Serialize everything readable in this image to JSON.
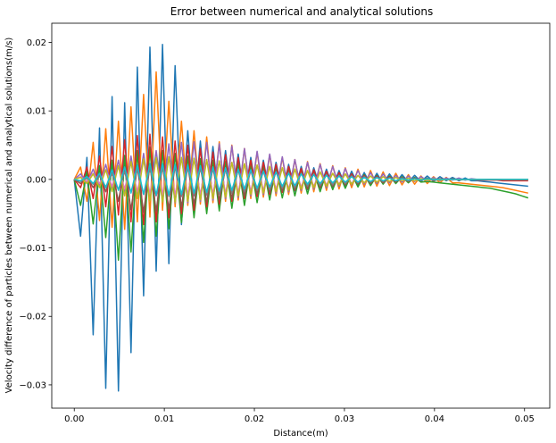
{
  "chart_data": {
    "type": "line",
    "title": "Error between numerical and analytical solutions",
    "xlabel": "Distance(m)",
    "ylabel": "Velocity difference of particles between numerical and analytical solutions(m/s)",
    "xlim": [
      -0.0025,
      0.0528
    ],
    "ylim": [
      -0.0334,
      0.0228
    ],
    "x_ticks": [
      0.0,
      0.01,
      0.02,
      0.03,
      0.04,
      0.05
    ],
    "x_tick_labels": [
      "0.00",
      "0.01",
      "0.02",
      "0.03",
      "0.04",
      "0.05"
    ],
    "y_ticks": [
      -0.03,
      -0.02,
      -0.01,
      0.0,
      0.01,
      0.02
    ],
    "y_tick_labels": [
      "−0.03",
      "−0.02",
      "−0.01",
      "0.00",
      "0.01",
      "0.02"
    ],
    "grid": false,
    "legend": "none",
    "x": [
      0.0,
      0.0007,
      0.0014,
      0.0021,
      0.0028,
      0.0035,
      0.0042,
      0.0049,
      0.0056,
      0.0063,
      0.007,
      0.0077,
      0.0084,
      0.0091,
      0.0098,
      0.0105,
      0.0112,
      0.0119,
      0.0126,
      0.0133,
      0.014,
      0.0147,
      0.0154,
      0.0161,
      0.0168,
      0.0175,
      0.0182,
      0.0189,
      0.0196,
      0.0203,
      0.021,
      0.0217,
      0.0224,
      0.0231,
      0.0238,
      0.0245,
      0.0252,
      0.0259,
      0.0266,
      0.0273,
      0.028,
      0.0287,
      0.0294,
      0.0301,
      0.0308,
      0.0315,
      0.0322,
      0.0329,
      0.0336,
      0.0343,
      0.035,
      0.0357,
      0.0364,
      0.0371,
      0.0378,
      0.0385,
      0.0392,
      0.0399,
      0.0406,
      0.0413,
      0.042,
      0.0427,
      0.0434,
      0.0441,
      0.0448,
      0.0455,
      0.0462,
      0.0469,
      0.0476,
      0.0483,
      0.049,
      0.0497,
      0.0504
    ],
    "series": [
      {
        "color": "#1f77b4",
        "values": [
          0.0,
          -0.0083,
          0.0032,
          -0.0227,
          0.0075,
          -0.0305,
          0.0121,
          -0.0309,
          0.0112,
          -0.0253,
          0.0164,
          -0.017,
          0.0193,
          -0.0134,
          0.0197,
          -0.0123,
          0.0166,
          -0.0066,
          0.0071,
          -0.0048,
          0.0056,
          -0.0041,
          0.0048,
          -0.0036,
          0.0042,
          -0.0032,
          0.0037,
          -0.0028,
          0.0032,
          -0.0025,
          0.0028,
          -0.0022,
          0.0025,
          -0.0019,
          0.0022,
          -0.0017,
          0.0019,
          -0.0015,
          0.0017,
          -0.0013,
          0.0015,
          -0.0011,
          0.0013,
          -0.001,
          0.0012,
          -0.0008,
          0.001,
          -0.0007,
          0.0009,
          -0.0006,
          0.0008,
          -0.0005,
          0.0007,
          -0.0004,
          0.0006,
          -0.0003,
          0.0005,
          -0.0003,
          0.0004,
          -0.0002,
          0.0003,
          -0.0002,
          0.0002,
          -0.0002,
          -0.0002,
          -0.0003,
          -0.0004,
          -0.0005,
          -0.0006,
          -0.0007,
          -0.0008,
          -0.0009,
          -0.001
        ]
      },
      {
        "color": "#ff7f0e",
        "values": [
          0.0,
          0.0018,
          -0.0032,
          0.0054,
          -0.006,
          0.0074,
          -0.007,
          0.0085,
          -0.0073,
          0.0106,
          -0.0062,
          0.0124,
          -0.0055,
          0.0157,
          -0.0045,
          0.0114,
          -0.004,
          0.0085,
          -0.0038,
          0.0071,
          -0.0036,
          0.0062,
          -0.0034,
          0.0055,
          -0.0032,
          0.005,
          -0.003,
          0.0045,
          -0.0028,
          0.004,
          -0.0026,
          0.0036,
          -0.0024,
          0.0032,
          -0.0022,
          0.0029,
          -0.002,
          0.0026,
          -0.0018,
          0.0023,
          -0.0016,
          0.002,
          -0.0014,
          0.0017,
          -0.0012,
          0.0015,
          -0.0011,
          0.0013,
          -0.001,
          0.0011,
          -0.0009,
          0.0009,
          -0.0008,
          0.0007,
          -0.0007,
          0.0005,
          -0.0006,
          0.0004,
          -0.0005,
          0.0003,
          -0.0005,
          -0.0005,
          -0.0006,
          -0.0007,
          -0.0008,
          -0.0009,
          -0.001,
          -0.0011,
          -0.0012,
          -0.0014,
          -0.0016,
          -0.0018,
          -0.002
        ]
      },
      {
        "color": "#2ca02c",
        "values": [
          0.0,
          -0.0038,
          0.0012,
          -0.0065,
          0.002,
          -0.0085,
          0.0028,
          -0.0118,
          0.0035,
          -0.0106,
          0.0042,
          -0.0092,
          0.0047,
          -0.0083,
          0.0042,
          -0.0072,
          0.0038,
          -0.0063,
          0.0034,
          -0.0056,
          0.003,
          -0.005,
          0.0028,
          -0.0046,
          0.0026,
          -0.0042,
          0.0024,
          -0.0038,
          0.0022,
          -0.0034,
          0.002,
          -0.003,
          0.0018,
          -0.0027,
          0.0016,
          -0.0024,
          0.0014,
          -0.0021,
          0.0012,
          -0.0018,
          0.001,
          -0.0015,
          0.0009,
          -0.0013,
          0.0008,
          -0.0011,
          0.0007,
          -0.0009,
          0.0006,
          -0.0007,
          0.0005,
          -0.0006,
          0.0004,
          -0.0005,
          0.0003,
          -0.0004,
          -0.0003,
          -0.0004,
          -0.0005,
          -0.0006,
          -0.0007,
          -0.0008,
          -0.0009,
          -0.001,
          -0.0011,
          -0.0012,
          -0.0013,
          -0.0015,
          -0.0017,
          -0.0019,
          -0.0021,
          -0.0024,
          -0.0027
        ]
      },
      {
        "color": "#d62728",
        "values": [
          0.0,
          -0.0012,
          0.0018,
          -0.0028,
          0.0034,
          -0.004,
          0.0048,
          -0.0052,
          0.0058,
          -0.0062,
          0.0064,
          -0.0066,
          0.0066,
          -0.0062,
          0.0062,
          -0.0056,
          0.0056,
          -0.005,
          0.005,
          -0.0045,
          0.0045,
          -0.004,
          0.004,
          -0.0036,
          0.0036,
          -0.0032,
          0.0032,
          -0.0028,
          0.0028,
          -0.0025,
          0.0025,
          -0.0022,
          0.0022,
          -0.0019,
          0.0019,
          -0.0016,
          0.0016,
          -0.0014,
          0.0014,
          -0.0012,
          0.0012,
          -0.001,
          0.001,
          -0.0008,
          0.0008,
          -0.0006,
          0.0006,
          -0.0005,
          0.0005,
          -0.0004,
          0.0004,
          -0.0003,
          0.0003,
          -0.0002,
          0.0002,
          -0.0001,
          0.0001,
          -0.0001,
          0.0001,
          0.0,
          0.0,
          0.0,
          0.0,
          0.0,
          -0.0001,
          -0.0001,
          -0.0001,
          -0.0001,
          -0.0002,
          -0.0002,
          -0.0002,
          -0.0002,
          -0.0002
        ]
      },
      {
        "color": "#9467bd",
        "values": [
          0.0,
          0.0008,
          -0.0005,
          0.0015,
          -0.001,
          0.0022,
          -0.0015,
          0.0028,
          -0.002,
          0.0034,
          -0.0024,
          0.0038,
          -0.0028,
          0.0042,
          -0.0032,
          0.0052,
          -0.0034,
          0.0054,
          -0.0034,
          0.0055,
          -0.0032,
          0.0054,
          -0.003,
          0.0052,
          -0.0028,
          0.0049,
          -0.0026,
          0.0045,
          -0.0024,
          0.0041,
          -0.0022,
          0.0037,
          -0.002,
          0.0033,
          -0.0018,
          0.0029,
          -0.0016,
          0.0025,
          -0.0014,
          0.0022,
          -0.0012,
          0.0019,
          -0.001,
          0.0016,
          -0.0008,
          0.0013,
          -0.0007,
          0.001,
          -0.0006,
          0.0008,
          -0.0005,
          0.0006,
          -0.0004,
          0.0005,
          -0.0003,
          0.0004,
          -0.0002,
          0.0003,
          -0.0002,
          0.0002,
          -0.0001,
          0.0002,
          -0.0001,
          0.0001,
          0.0,
          0.0,
          0.0,
          0.0,
          0.0,
          0.0,
          0.0,
          0.0,
          0.0
        ]
      },
      {
        "color": "#8c564b",
        "values": [
          0.0,
          -0.0006,
          0.0004,
          -0.0012,
          0.0008,
          -0.0018,
          0.0012,
          -0.0032,
          0.0016,
          -0.0044,
          0.0018,
          -0.0048,
          0.002,
          -0.0046,
          0.002,
          -0.0043,
          0.002,
          -0.004,
          0.0019,
          -0.0036,
          0.0018,
          -0.0033,
          0.0017,
          -0.003,
          0.0016,
          -0.0027,
          0.0015,
          -0.0024,
          0.0014,
          -0.0021,
          0.0013,
          -0.0019,
          0.0012,
          -0.0017,
          0.0011,
          -0.0015,
          0.001,
          -0.0013,
          0.0009,
          -0.0011,
          0.0008,
          -0.001,
          0.0007,
          -0.0008,
          0.0006,
          -0.0007,
          0.0005,
          -0.0006,
          0.0004,
          -0.0005,
          0.0003,
          -0.0004,
          0.0003,
          -0.0003,
          0.0002,
          -0.0002,
          0.0002,
          -0.0002,
          0.0001,
          -0.0001,
          0.0001,
          -0.0001,
          0.0,
          0.0,
          0.0,
          0.0,
          0.0,
          0.0,
          0.0,
          0.0,
          0.0,
          0.0,
          0.0
        ]
      },
      {
        "color": "#e377c2",
        "values": [
          0.0,
          0.0004,
          -0.0003,
          0.0009,
          -0.0006,
          0.0014,
          -0.001,
          0.0019,
          -0.0014,
          0.0024,
          -0.0018,
          0.0028,
          -0.0021,
          0.003,
          -0.0022,
          0.0031,
          -0.0023,
          0.0031,
          -0.0023,
          0.003,
          -0.0022,
          0.0029,
          -0.0021,
          0.0027,
          -0.002,
          0.0025,
          -0.0019,
          0.0023,
          -0.0017,
          0.0021,
          -0.0016,
          0.0019,
          -0.0014,
          0.0017,
          -0.0013,
          0.0015,
          -0.0011,
          0.0013,
          -0.001,
          0.0011,
          -0.0008,
          0.0009,
          -0.0007,
          0.0008,
          -0.0006,
          0.0006,
          -0.0005,
          0.0005,
          -0.0004,
          0.0004,
          -0.0003,
          0.0003,
          -0.0002,
          0.0002,
          -0.0002,
          0.0001,
          -0.0001,
          0.0001,
          0.0,
          0.0,
          0.0,
          0.0,
          0.0,
          0.0,
          0.0,
          0.0,
          0.0,
          0.0,
          0.0,
          0.0,
          0.0,
          0.0,
          0.0
        ]
      },
      {
        "color": "#7f7f7f",
        "values": [
          0.0,
          -0.0003,
          0.0002,
          -0.0007,
          0.0005,
          -0.0011,
          0.0008,
          -0.0015,
          0.0011,
          -0.0019,
          0.0014,
          -0.0022,
          0.0016,
          -0.0024,
          0.0017,
          -0.0025,
          0.0018,
          -0.0025,
          0.0018,
          -0.0024,
          0.0017,
          -0.0023,
          0.0016,
          -0.0022,
          0.0015,
          -0.002,
          0.0014,
          -0.0018,
          0.0013,
          -0.0016,
          0.0012,
          -0.0015,
          0.0011,
          -0.0013,
          0.001,
          -0.0012,
          0.0009,
          -0.001,
          0.0008,
          -0.0009,
          0.0007,
          -0.0008,
          0.0006,
          -0.0006,
          0.0005,
          -0.0005,
          0.0004,
          -0.0004,
          0.0003,
          -0.0003,
          0.0002,
          -0.0002,
          0.0002,
          -0.0002,
          0.0001,
          -0.0001,
          0.0001,
          -0.0001,
          0.0,
          0.0,
          0.0,
          0.0,
          0.0,
          0.0,
          0.0,
          0.0,
          0.0,
          0.0,
          0.0,
          0.0,
          0.0,
          0.0,
          0.0
        ]
      },
      {
        "color": "#bcbd22",
        "values": [
          0.0,
          0.0003,
          -0.0006,
          0.0008,
          -0.0012,
          0.0014,
          -0.0018,
          0.002,
          -0.0024,
          0.0026,
          -0.0028,
          0.003,
          -0.0031,
          0.0032,
          -0.0033,
          0.0033,
          -0.0033,
          0.0032,
          -0.0032,
          0.0031,
          -0.003,
          0.0029,
          -0.0028,
          0.0027,
          -0.0026,
          0.0025,
          -0.0024,
          0.0023,
          -0.0022,
          0.0021,
          -0.002,
          0.0019,
          -0.0018,
          0.0017,
          -0.0016,
          0.0015,
          -0.0014,
          0.0013,
          -0.0012,
          0.0011,
          -0.001,
          0.0009,
          -0.0008,
          0.0008,
          -0.0007,
          0.0006,
          -0.0005,
          0.0005,
          -0.0004,
          0.0004,
          -0.0003,
          0.0003,
          -0.0002,
          0.0002,
          -0.0002,
          0.0001,
          -0.0001,
          0.0001,
          -0.0001,
          0.0,
          0.0,
          0.0,
          0.0,
          0.0,
          0.0,
          0.0,
          0.0,
          0.0,
          0.0,
          0.0,
          0.0,
          0.0,
          0.0
        ]
      },
      {
        "color": "#17becf",
        "values": [
          0.0,
          -0.0002,
          0.0004,
          -0.0006,
          0.0009,
          -0.0012,
          0.0014,
          -0.0016,
          0.0018,
          -0.002,
          0.0021,
          -0.0022,
          0.0023,
          -0.0023,
          0.0023,
          -0.0023,
          0.0022,
          -0.0022,
          0.0021,
          -0.002,
          0.002,
          -0.0019,
          0.0018,
          -0.0017,
          0.0017,
          -0.0016,
          0.0015,
          -0.0014,
          0.0014,
          -0.0013,
          0.0012,
          -0.0011,
          0.0011,
          -0.001,
          0.0009,
          -0.0009,
          0.0008,
          -0.0007,
          0.0007,
          -0.0006,
          0.0006,
          -0.0005,
          0.0005,
          -0.0004,
          0.0004,
          -0.0004,
          0.0003,
          -0.0003,
          0.0003,
          -0.0002,
          0.0002,
          -0.0002,
          0.0001,
          -0.0001,
          0.0001,
          -0.0001,
          0.0001,
          0.0,
          0.0,
          0.0,
          0.0,
          0.0,
          0.0,
          0.0,
          0.0,
          0.0,
          0.0,
          0.0,
          0.0,
          0.0,
          0.0,
          0.0,
          0.0
        ]
      }
    ]
  }
}
